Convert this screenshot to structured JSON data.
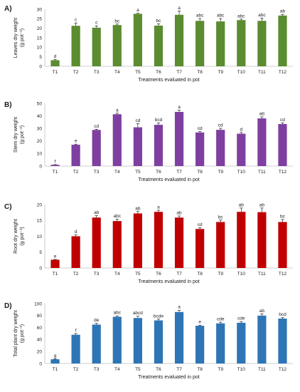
{
  "chart_data": [
    {
      "type": "bar",
      "panel": "A)",
      "ylabel": "Leaves dry weight",
      "ylabel_unit": "(g pot⁻¹)",
      "xlabel": "Treatments evaluated in pot",
      "categories": [
        "T1",
        "T2",
        "T3",
        "T4",
        "T5",
        "T6",
        "T7",
        "T8",
        "T9",
        "T10",
        "T11",
        "T12"
      ],
      "values": [
        3.2,
        21.3,
        20.3,
        21.7,
        27.6,
        21.4,
        27.1,
        23.9,
        23.6,
        24.3,
        23.9,
        26.7
      ],
      "errors": [
        0.3,
        1.5,
        1.0,
        0.5,
        0.3,
        1.0,
        2.0,
        1.2,
        1.5,
        0.5,
        1.5,
        0.6
      ],
      "letters": [
        "d",
        "c",
        "c",
        "bc",
        "a",
        "bc",
        "a",
        "abc",
        "abc",
        "abc",
        "abc",
        "ab"
      ],
      "ylim": [
        0,
        30
      ],
      "yticks": [
        0,
        5,
        10,
        15,
        20,
        25,
        30
      ],
      "color": "#5b8c2f"
    },
    {
      "type": "bar",
      "panel": "B)",
      "ylabel": "Stem dry weight",
      "ylabel_unit": "(g pot⁻¹)",
      "xlabel": "Treatments evaluated in pot",
      "categories": [
        "T1",
        "T2",
        "T3",
        "T4",
        "T5",
        "T6",
        "T7",
        "T8",
        "T9",
        "T10",
        "T11",
        "T12"
      ],
      "values": [
        1.0,
        17.0,
        28.8,
        41.3,
        30.9,
        32.9,
        43.2,
        26.8,
        28.9,
        25.8,
        38.0,
        33.5
      ],
      "errors": [
        0.2,
        0.5,
        0.6,
        0.8,
        3.0,
        1.5,
        1.5,
        0.7,
        1.2,
        1.0,
        1.2,
        1.0
      ],
      "letters": [
        "f",
        "e",
        "cd",
        "a",
        "cd",
        "bcd",
        "a",
        "cd",
        "cd",
        "d",
        "ab",
        "cd"
      ],
      "ylim": [
        0,
        50
      ],
      "yticks": [
        0,
        10,
        20,
        30,
        40,
        50
      ],
      "color": "#7f3fa0"
    },
    {
      "type": "bar",
      "panel": "C)",
      "ylabel": "Root dry weight",
      "ylabel_unit": "(g pot⁻¹)",
      "xlabel": "Treatments evaluated in pot",
      "categories": [
        "T1",
        "T2",
        "T3",
        "T4",
        "T5",
        "T6",
        "T7",
        "T8",
        "T9",
        "T10",
        "T11",
        "T12"
      ],
      "values": [
        2.6,
        10.0,
        15.9,
        14.8,
        17.2,
        17.7,
        15.9,
        12.3,
        14.5,
        17.7,
        17.6,
        14.5
      ],
      "errors": [
        0.1,
        0.4,
        0.6,
        0.6,
        0.6,
        0.5,
        0.5,
        0.4,
        0.6,
        1.2,
        1.3,
        0.8
      ],
      "letters": [
        "e",
        "d",
        "ab",
        "abc",
        "ab",
        "a",
        "ab",
        "cd",
        "bc",
        "ab",
        "ab",
        "bc"
      ],
      "ylim": [
        0,
        20
      ],
      "yticks": [
        0,
        5,
        10,
        15,
        20
      ],
      "color": "#c00000"
    },
    {
      "type": "bar",
      "panel": "D)",
      "ylabel": "Total plant dry weight",
      "ylabel_unit": "(g pot⁻¹)",
      "xlabel": "Treatments evaluated in pot",
      "categories": [
        "T1",
        "T2",
        "T3",
        "T4",
        "T5",
        "T6",
        "T7",
        "T8",
        "T9",
        "T10",
        "T11",
        "T12"
      ],
      "values": [
        7,
        48,
        65,
        78,
        76,
        72,
        86,
        63,
        67,
        68,
        80,
        75
      ],
      "errors": [
        1,
        2,
        2,
        1.5,
        3,
        2,
        3,
        1,
        2,
        2,
        3,
        1.5
      ],
      "letters": [
        "g",
        "f",
        "de",
        "abc",
        "abcd",
        "bcde",
        "a",
        "e",
        "cde",
        "cde",
        "ab",
        "bcd"
      ],
      "ylim": [
        0,
        100
      ],
      "yticks": [
        0,
        20,
        40,
        60,
        80,
        100
      ],
      "color": "#2e75b6"
    }
  ]
}
